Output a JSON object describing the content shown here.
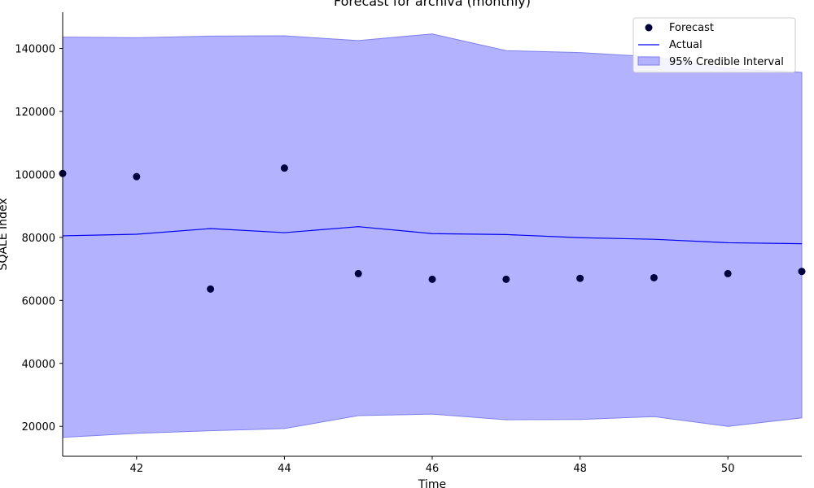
{
  "chart_data": {
    "type": "line",
    "title": "Forecast for archiva (monthly)",
    "xlabel": "Time",
    "ylabel": "SQALE Index",
    "xlim": [
      41,
      51
    ],
    "ylim": [
      10500,
      151500
    ],
    "x_ticks": [
      42,
      44,
      46,
      48,
      50
    ],
    "y_ticks": [
      20000,
      40000,
      60000,
      80000,
      100000,
      120000,
      140000
    ],
    "grid": false,
    "legend_position": "top-right",
    "x": [
      41,
      42,
      43,
      44,
      45,
      46,
      47,
      48,
      49,
      50,
      51
    ],
    "series": [
      {
        "name": "Forecast",
        "type": "scatter",
        "color": "#00003f",
        "values": [
          100300,
          99300,
          63600,
          102000,
          68500,
          66700,
          66700,
          67000,
          67200,
          68500,
          69200
        ]
      },
      {
        "name": "Actual",
        "type": "line",
        "color": "#0000ee",
        "values": [
          80500,
          81000,
          82800,
          81500,
          83400,
          81200,
          80900,
          79900,
          79400,
          78300,
          78000
        ]
      },
      {
        "name": "95% Credible Interval",
        "type": "band",
        "color": "#b2b2ff",
        "edge_color": "#8080ee",
        "lower": [
          16500,
          17800,
          18600,
          19300,
          23400,
          23900,
          22100,
          22200,
          23100,
          20000,
          22700
        ],
        "upper": [
          143600,
          143400,
          143900,
          144000,
          142500,
          144600,
          139300,
          138700,
          137300,
          133600,
          132400
        ]
      }
    ]
  }
}
